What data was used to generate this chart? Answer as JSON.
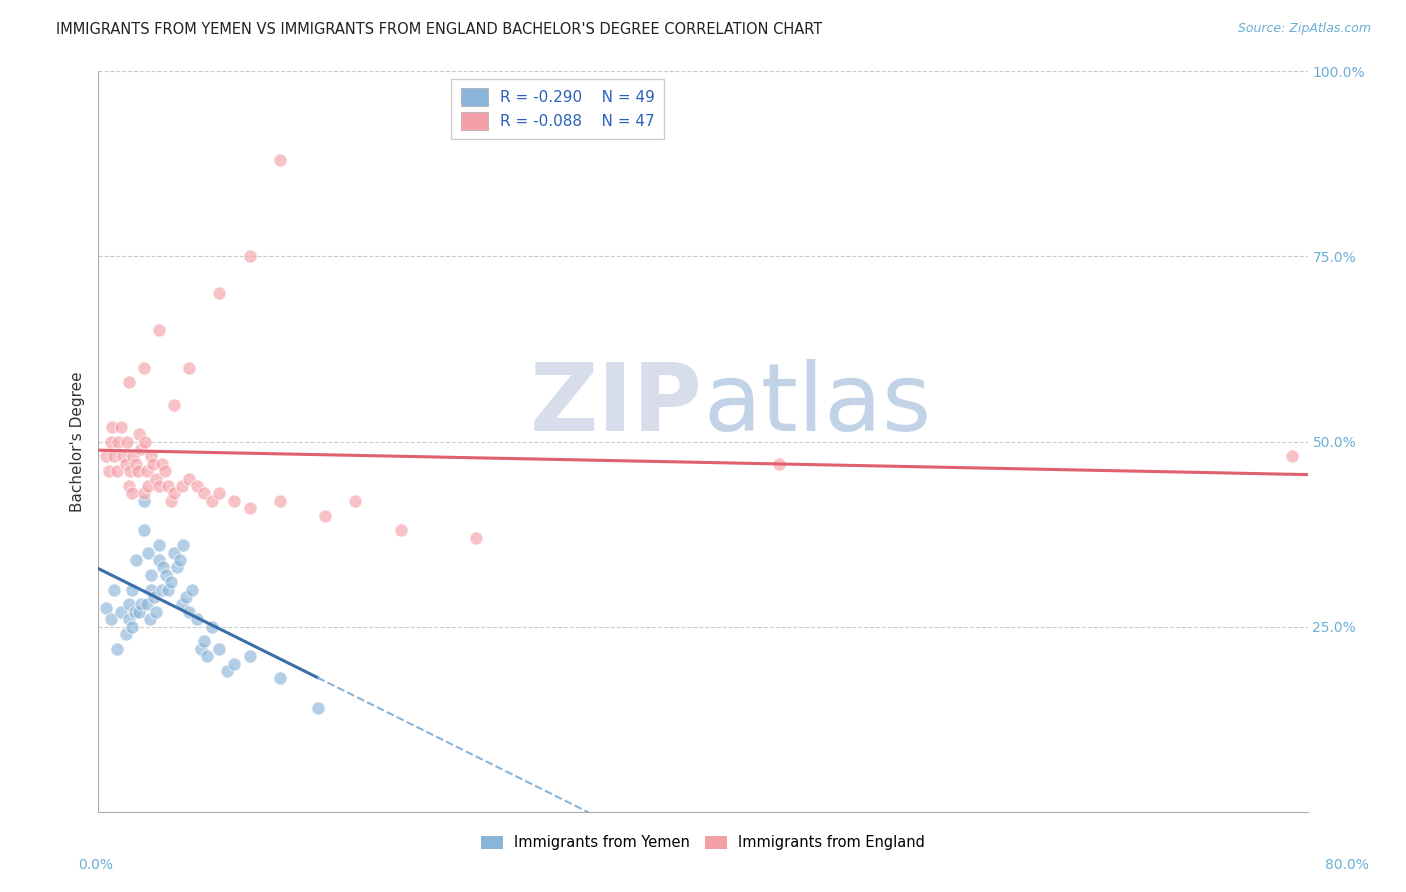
{
  "title": "IMMIGRANTS FROM YEMEN VS IMMIGRANTS FROM ENGLAND BACHELOR'S DEGREE CORRELATION CHART",
  "source": "Source: ZipAtlas.com",
  "ylabel": "Bachelor's Degree",
  "legend_label1": "Immigrants from Yemen",
  "legend_label2": "Immigrants from England",
  "R1": -0.29,
  "N1": 49,
  "R2": -0.088,
  "N2": 47,
  "color_yemen": "#8ab4d8",
  "color_england": "#f4a0a8",
  "color_line_yemen": "#3a6fa8",
  "color_line_england": "#e06070",
  "xlim": [
    0.0,
    0.8
  ],
  "ylim": [
    0.0,
    1.0
  ],
  "yemen_x": [
    0.005,
    0.008,
    0.01,
    0.012,
    0.015,
    0.018,
    0.02,
    0.02,
    0.022,
    0.022,
    0.024,
    0.025,
    0.027,
    0.028,
    0.03,
    0.03,
    0.032,
    0.033,
    0.034,
    0.035,
    0.035,
    0.037,
    0.038,
    0.04,
    0.04,
    0.042,
    0.043,
    0.045,
    0.046,
    0.048,
    0.05,
    0.052,
    0.054,
    0.055,
    0.056,
    0.058,
    0.06,
    0.062,
    0.065,
    0.068,
    0.07,
    0.072,
    0.075,
    0.08,
    0.085,
    0.09,
    0.1,
    0.12,
    0.145
  ],
  "yemen_y": [
    0.275,
    0.26,
    0.3,
    0.22,
    0.27,
    0.24,
    0.26,
    0.28,
    0.25,
    0.3,
    0.27,
    0.34,
    0.27,
    0.28,
    0.38,
    0.42,
    0.28,
    0.35,
    0.26,
    0.3,
    0.32,
    0.29,
    0.27,
    0.34,
    0.36,
    0.3,
    0.33,
    0.32,
    0.3,
    0.31,
    0.35,
    0.33,
    0.34,
    0.28,
    0.36,
    0.29,
    0.27,
    0.3,
    0.26,
    0.22,
    0.23,
    0.21,
    0.25,
    0.22,
    0.19,
    0.2,
    0.21,
    0.18,
    0.14
  ],
  "england_x": [
    0.005,
    0.007,
    0.008,
    0.009,
    0.01,
    0.012,
    0.013,
    0.015,
    0.016,
    0.018,
    0.019,
    0.02,
    0.021,
    0.022,
    0.023,
    0.025,
    0.026,
    0.027,
    0.028,
    0.03,
    0.031,
    0.032,
    0.033,
    0.035,
    0.036,
    0.038,
    0.04,
    0.042,
    0.044,
    0.046,
    0.048,
    0.05,
    0.055,
    0.06,
    0.065,
    0.07,
    0.075,
    0.08,
    0.09,
    0.1,
    0.12,
    0.15,
    0.17,
    0.2,
    0.25,
    0.45,
    0.79
  ],
  "england_y": [
    0.48,
    0.46,
    0.5,
    0.52,
    0.48,
    0.46,
    0.5,
    0.52,
    0.48,
    0.47,
    0.5,
    0.44,
    0.46,
    0.43,
    0.48,
    0.47,
    0.46,
    0.51,
    0.49,
    0.43,
    0.5,
    0.46,
    0.44,
    0.48,
    0.47,
    0.45,
    0.44,
    0.47,
    0.46,
    0.44,
    0.42,
    0.43,
    0.44,
    0.45,
    0.44,
    0.43,
    0.42,
    0.43,
    0.42,
    0.41,
    0.42,
    0.4,
    0.42,
    0.38,
    0.37,
    0.47,
    0.48
  ],
  "england_outlier_x": [
    0.02,
    0.03,
    0.04,
    0.05,
    0.06,
    0.08,
    0.1,
    0.12
  ],
  "england_outlier_y": [
    0.58,
    0.6,
    0.65,
    0.55,
    0.6,
    0.7,
    0.75,
    0.88
  ]
}
